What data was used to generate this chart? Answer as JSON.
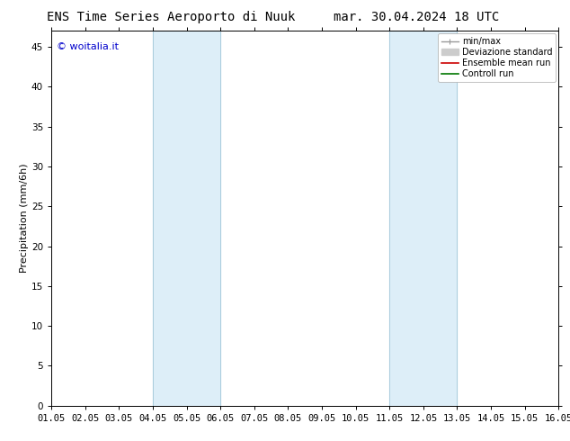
{
  "title_left": "ENS Time Series Aeroporto di Nuuk",
  "title_right": "mar. 30.04.2024 18 UTC",
  "ylabel": "Precipitation (mm/6h)",
  "xlabel": "",
  "watermark": "© woitalia.it",
  "xlim": [
    1.05,
    16.05
  ],
  "ylim": [
    0,
    47
  ],
  "yticks": [
    0,
    5,
    10,
    15,
    20,
    25,
    30,
    35,
    40,
    45
  ],
  "xtick_labels": [
    "01.05",
    "02.05",
    "03.05",
    "04.05",
    "05.05",
    "06.05",
    "07.05",
    "08.05",
    "09.05",
    "10.05",
    "11.05",
    "12.05",
    "13.05",
    "14.05",
    "15.05",
    "16.05"
  ],
  "xtick_positions": [
    1.05,
    2.05,
    3.05,
    4.05,
    5.05,
    6.05,
    7.05,
    8.05,
    9.05,
    10.05,
    11.05,
    12.05,
    13.05,
    14.05,
    15.05,
    16.05
  ],
  "shaded_regions": [
    {
      "xmin": 4.05,
      "xmax": 6.05
    },
    {
      "xmin": 11.05,
      "xmax": 13.05
    }
  ],
  "shade_color": "#ddeef8",
  "shade_border_color": "#aaccdd",
  "bg_color": "#ffffff",
  "title_fontsize": 10,
  "watermark_fontsize": 8,
  "axis_label_fontsize": 8,
  "tick_fontsize": 7.5,
  "legend_fontsize": 7,
  "legend_minmax_color": "#999999",
  "legend_std_color": "#cccccc",
  "legend_mean_color": "#cc0000",
  "legend_control_color": "#007700"
}
